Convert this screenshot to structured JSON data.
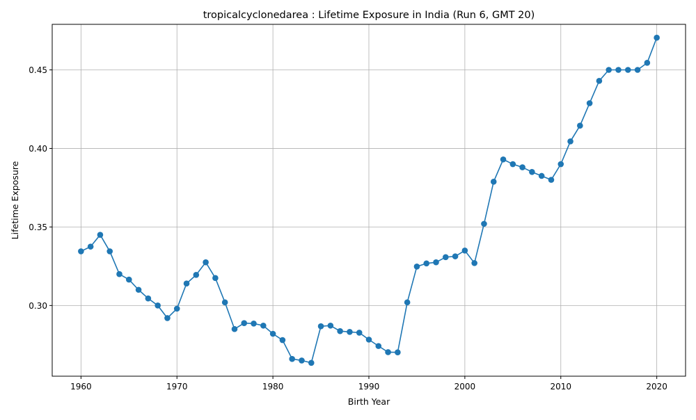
{
  "chart_data": {
    "type": "line",
    "title": "tropicalcyclonedarea : Lifetime Exposure in India (Run 6, GMT 20)",
    "xlabel": "Birth Year",
    "ylabel": "Lifetime Exposure",
    "xlim": [
      1957,
      2023
    ],
    "ylim": [
      0.255,
      0.479
    ],
    "xticks": [
      1960,
      1970,
      1980,
      1990,
      2000,
      2010,
      2020
    ],
    "yticks": [
      0.3,
      0.35,
      0.4,
      0.45
    ],
    "ytick_labels": [
      "0.30",
      "0.35",
      "0.40",
      "0.45"
    ],
    "grid": true,
    "series_color": "#1f77b4",
    "marker": "circle",
    "x": [
      1960,
      1961,
      1962,
      1963,
      1964,
      1965,
      1966,
      1967,
      1968,
      1969,
      1970,
      1971,
      1972,
      1973,
      1974,
      1975,
      1976,
      1977,
      1978,
      1979,
      1980,
      1981,
      1982,
      1983,
      1984,
      1985,
      1986,
      1987,
      1988,
      1989,
      1990,
      1991,
      1992,
      1993,
      1994,
      1995,
      1996,
      1997,
      1998,
      1999,
      2000,
      2001,
      2002,
      2003,
      2004,
      2005,
      2006,
      2007,
      2008,
      2009,
      2010,
      2011,
      2012,
      2013,
      2014,
      2015,
      2016,
      2017,
      2018,
      2019,
      2020
    ],
    "values": [
      0.3345,
      0.3375,
      0.345,
      0.3345,
      0.32,
      0.3165,
      0.31,
      0.3045,
      0.3,
      0.292,
      0.298,
      0.314,
      0.3195,
      0.3275,
      0.3175,
      0.302,
      0.285,
      0.2888,
      0.2885,
      0.2872,
      0.282,
      0.278,
      0.266,
      0.265,
      0.2635,
      0.2868,
      0.2872,
      0.2837,
      0.2832,
      0.2827,
      0.2783,
      0.2742,
      0.2703,
      0.2702,
      0.302,
      0.3248,
      0.3268,
      0.3275,
      0.3308,
      0.3313,
      0.335,
      0.327,
      0.352,
      0.3788,
      0.393,
      0.39,
      0.388,
      0.385,
      0.3825,
      0.38,
      0.39,
      0.4045,
      0.4145,
      0.4288,
      0.443,
      0.45,
      0.45,
      0.45,
      0.45,
      0.4545,
      0.4705
    ]
  }
}
